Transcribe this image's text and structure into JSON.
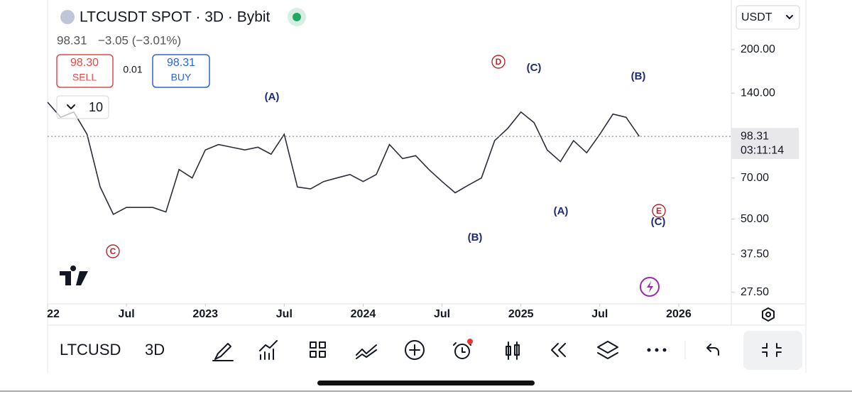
{
  "header": {
    "title": "LTCUSDT SPOT · 3D · Bybit",
    "price": "98.31",
    "change": "−3.05 (−3.01%)"
  },
  "order": {
    "sell_price": "98.30",
    "sell_label": "SELL",
    "spread": "0.01",
    "buy_price": "98.31",
    "buy_label": "BUY"
  },
  "indicator_count": "10",
  "currency": "USDT",
  "chart_data": {
    "type": "line",
    "color": "#2a2e39",
    "log_scale": true,
    "x": [
      "2022-01",
      "2022-02",
      "2022-03",
      "2022-04",
      "2022-05",
      "2022-06",
      "2022-07",
      "2022-08",
      "2022-09",
      "2022-10",
      "2022-11",
      "2022-12",
      "2023-01",
      "2023-02",
      "2023-03",
      "2023-04",
      "2023-05",
      "2023-06",
      "2023-07",
      "2023-08",
      "2023-09",
      "2023-10",
      "2023-11",
      "2023-12",
      "2024-01",
      "2024-02",
      "2024-03",
      "2024-04",
      "2024-05",
      "2024-06",
      "2024-07",
      "2024-08",
      "2024-09",
      "2024-10",
      "2024-11",
      "2024-12",
      "2025-01",
      "2025-02",
      "2025-03",
      "2025-04",
      "2025-05",
      "2025-06",
      "2025-07",
      "2025-08",
      "2025-09",
      "2025-10"
    ],
    "values": [
      130,
      115,
      120,
      100,
      65,
      52,
      55,
      55,
      55,
      53,
      75,
      70,
      88,
      92,
      90,
      88,
      90,
      85,
      100,
      65,
      64,
      68,
      70,
      72,
      68,
      72,
      92,
      82,
      84,
      75,
      68,
      62,
      66,
      70,
      95,
      105,
      120,
      110,
      88,
      80,
      95,
      86,
      100,
      118,
      115,
      98.31
    ],
    "xlim": [
      "2022-01",
      "2026-05"
    ],
    "xticks": [
      {
        "value": "2022-01",
        "label": "22"
      },
      {
        "value": "2022-07",
        "label": "Jul"
      },
      {
        "value": "2023-01",
        "label": "2023"
      },
      {
        "value": "2023-07",
        "label": "Jul"
      },
      {
        "value": "2024-01",
        "label": "2024"
      },
      {
        "value": "2024-07",
        "label": "Jul"
      },
      {
        "value": "2025-01",
        "label": "2025"
      },
      {
        "value": "2025-07",
        "label": "Jul"
      },
      {
        "value": "2026-01",
        "label": "2026"
      }
    ],
    "ylim": [
      25,
      300
    ],
    "yticks": [
      {
        "value": 200,
        "label": "200.00"
      },
      {
        "value": 140,
        "label": "140.00"
      },
      {
        "value": 70,
        "label": "70.00"
      },
      {
        "value": 50,
        "label": "50.00"
      },
      {
        "value": 37.5,
        "label": "37.50"
      },
      {
        "value": 27.5,
        "label": "27.50"
      }
    ],
    "last_price": {
      "value": 98.31,
      "label": "98.31"
    },
    "countdown": "03:11:14",
    "annotations": [
      "(A)",
      "D",
      "(C)",
      "(B)",
      "(A)",
      "(B)",
      "(C)",
      "E",
      "C"
    ]
  },
  "toolbar": {
    "symbol": "LTCUSD",
    "interval": "3D"
  }
}
